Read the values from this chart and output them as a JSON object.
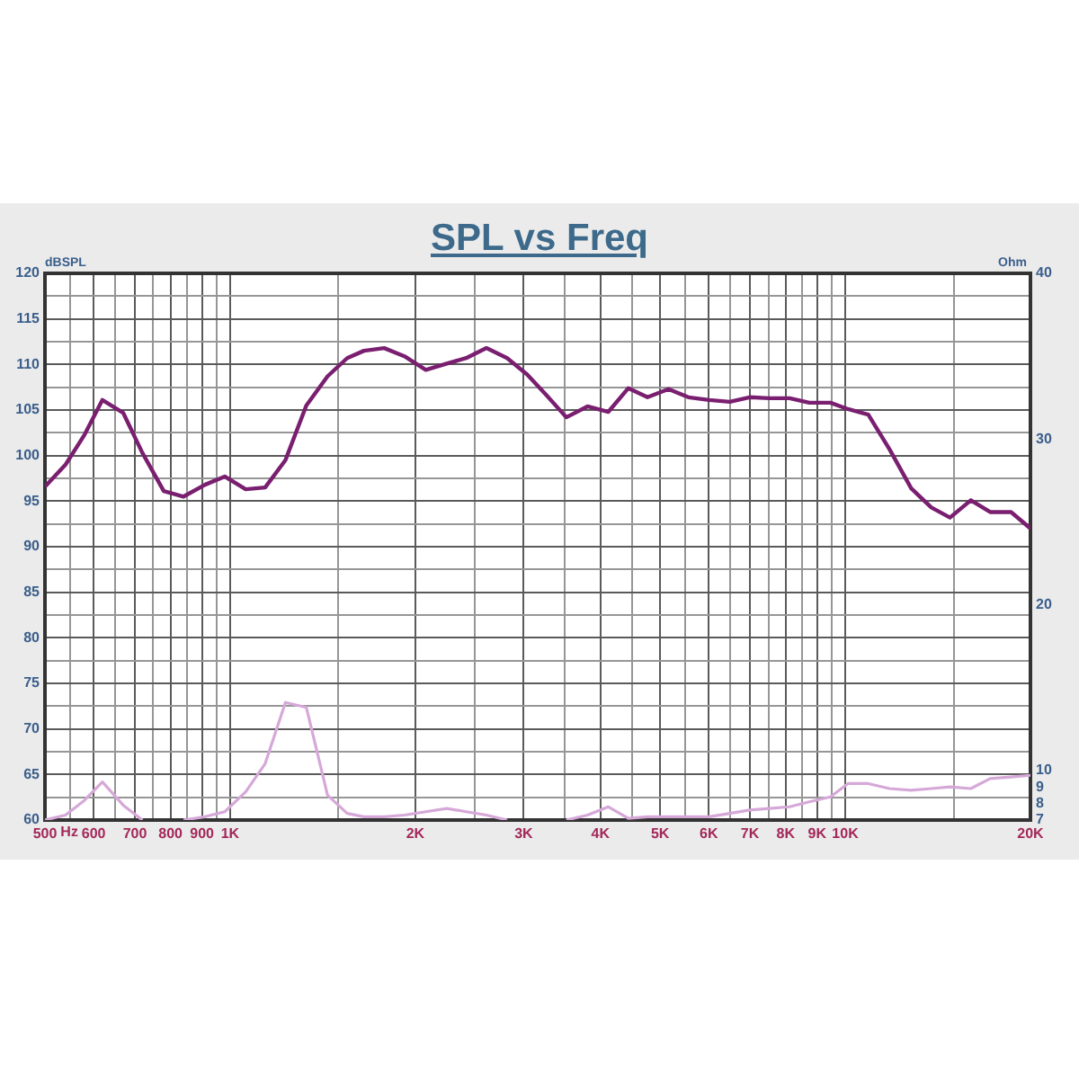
{
  "chart_data": {
    "type": "line",
    "title": "SPL vs Freq",
    "xlabel": "Hz",
    "ylabel": "dBSPL",
    "y2label": "Ohm",
    "x": [
      500,
      540,
      580,
      620,
      670,
      720,
      780,
      840,
      910,
      980,
      1060,
      1140,
      1230,
      1330,
      1440,
      1550,
      1650,
      1780,
      1920,
      2080,
      2250,
      2420,
      2610,
      2820,
      3040,
      3270,
      3520,
      3810,
      4120,
      4440,
      4770,
      5160,
      5560,
      6010,
      6490,
      6990,
      7520,
      8120,
      8740,
      9460,
      10100,
      10900,
      11800,
      12800,
      13800,
      14800,
      16000,
      17200,
      18600,
      20000
    ],
    "series": [
      {
        "color": "#7a1f70",
        "values": [
          96.6,
          99.0,
          102.3,
          106.1,
          104.7,
          100.3,
          96.1,
          95.5,
          96.8,
          97.7,
          96.3,
          96.5,
          99.5,
          105.5,
          108.7,
          110.7,
          111.5,
          111.8,
          110.9,
          109.4,
          110.1,
          110.7,
          111.8,
          110.7,
          108.9,
          106.6,
          104.2,
          105.4,
          104.8,
          107.4,
          106.4,
          107.3,
          106.4,
          106.1,
          105.9,
          106.4,
          106.3,
          106.3,
          105.8,
          105.8,
          105.1,
          104.5,
          100.7,
          96.4,
          94.3,
          93.2,
          95.1,
          93.8,
          93.8,
          92.0
        ]
      },
      {
        "color": "#d6a8d8",
        "axis": "y2",
        "values": [
          7.0,
          7.3,
          8.2,
          9.3,
          7.9,
          7.0,
          null,
          7.0,
          7.2,
          7.5,
          8.7,
          10.4,
          14.1,
          13.8,
          8.5,
          7.4,
          7.2,
          7.2,
          7.3,
          7.5,
          7.7,
          7.5,
          7.3,
          7.0,
          null,
          null,
          7.0,
          7.3,
          7.8,
          7.1,
          7.2,
          7.2,
          7.2,
          7.2,
          7.4,
          7.6,
          7.7,
          7.8,
          8.1,
          8.4,
          9.2,
          9.2,
          8.9,
          8.8,
          8.9,
          9.0,
          8.9,
          9.5,
          9.6,
          9.7
        ]
      }
    ],
    "log": "x",
    "xlim": [
      500,
      20000
    ],
    "xticks": [
      500,
      {
        "value": 550,
        "label": null
      },
      600,
      {
        "value": 650,
        "label": null
      },
      700,
      {
        "value": 750,
        "label": null
      },
      800,
      {
        "value": 850,
        "label": null
      },
      900,
      {
        "value": 950,
        "label": null
      },
      {
        "value": 1000,
        "label": "1K"
      },
      {
        "value": 1500,
        "label": null
      },
      {
        "value": 2000,
        "label": "2K"
      },
      {
        "value": 2500,
        "label": null
      },
      {
        "value": 3000,
        "label": "3K"
      },
      {
        "value": 3500,
        "label": null
      },
      {
        "value": 4000,
        "label": "4K"
      },
      {
        "value": 4500,
        "label": null
      },
      {
        "value": 5000,
        "label": "5K"
      },
      {
        "value": 5500,
        "label": null
      },
      {
        "value": 6000,
        "label": "6K"
      },
      {
        "value": 6500,
        "label": null
      },
      {
        "value": 7000,
        "label": "7K"
      },
      {
        "value": 7500,
        "label": null
      },
      {
        "value": 8000,
        "label": "8K"
      },
      {
        "value": 8500,
        "label": null
      },
      {
        "value": 9000,
        "label": "9K"
      },
      {
        "value": 9500,
        "label": null
      },
      {
        "value": 10000,
        "label": "10K"
      },
      {
        "value": 15000,
        "label": null
      },
      {
        "value": 20000,
        "label": "20K"
      }
    ],
    "ylim": [
      60,
      120
    ],
    "yticks": [
      60,
      {
        "value": 62.5,
        "label": null
      },
      65,
      {
        "value": 67.5,
        "label": null
      },
      70,
      {
        "value": 72.5,
        "label": null
      },
      75,
      {
        "value": 77.5,
        "label": null
      },
      80,
      {
        "value": 82.5,
        "label": null
      },
      85,
      {
        "value": 87.5,
        "label": null
      },
      90,
      {
        "value": 92.5,
        "label": null
      },
      95,
      {
        "value": 97.5,
        "label": null
      },
      100,
      {
        "value": 102.5,
        "label": null
      },
      105,
      {
        "value": 107.5,
        "label": null
      },
      110,
      {
        "value": 112.5,
        "label": null
      },
      115,
      {
        "value": 117.5,
        "label": null
      },
      120
    ],
    "y2lim": [
      7,
      40
    ],
    "y2ticks": [
      7,
      8,
      9,
      10,
      20,
      30,
      40
    ],
    "grid": true,
    "marker": "none"
  }
}
